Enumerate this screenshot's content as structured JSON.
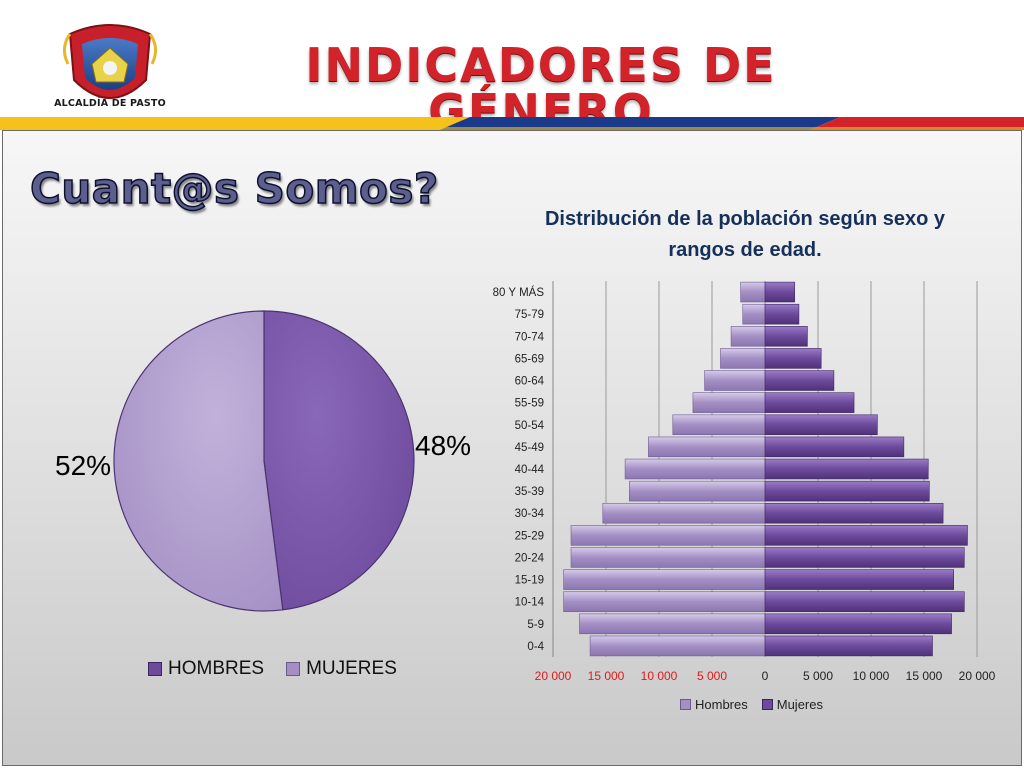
{
  "header": {
    "title": "INDICADORES DE GÉNERO",
    "logo_text": "ALCALDÍA DE PASTO"
  },
  "subtitle": "Cuant@s Somos?",
  "colors": {
    "title_red": "#d2232a",
    "stripe_yellow": "#f4c21a",
    "stripe_blue": "#1b3b8a",
    "stripe_red": "#d2232a",
    "hombres_dark": "#6d4a9c",
    "mujeres_light": "#a48fc4",
    "neg_tick_red": "#e21a1a"
  },
  "chart_data": [
    {
      "type": "pie",
      "categories": [
        "HOMBRES",
        "MUJERES"
      ],
      "values": [
        48,
        52
      ],
      "labels": [
        "48%",
        "52%"
      ],
      "legend": [
        "HOMBRES",
        "MUJERES"
      ],
      "legend_position": "bottom"
    },
    {
      "type": "bar",
      "orientation": "horizontal",
      "title": "Distribución de la población según sexo y rangos de edad.",
      "categories": [
        "0-4",
        "5-9",
        "10-14",
        "15-19",
        "20-24",
        "25-29",
        "30-34",
        "35-39",
        "40-44",
        "45-49",
        "50-54",
        "55-59",
        "60-64",
        "65-69",
        "70-74",
        "75-79",
        "80 Y MÁS"
      ],
      "series": [
        {
          "name": "Hombres",
          "values": [
            -16500,
            -17500,
            -19000,
            -19000,
            -18300,
            -18300,
            -15300,
            -12800,
            -13200,
            -11000,
            -8700,
            -6800,
            -5700,
            -4200,
            -3200,
            -2100,
            -2300
          ]
        },
        {
          "name": "Mujeres",
          "values": [
            15800,
            17600,
            18800,
            17800,
            18800,
            19100,
            16800,
            15500,
            15400,
            13100,
            10600,
            8400,
            6500,
            5300,
            4000,
            3200,
            2800
          ]
        }
      ],
      "xlim": [
        -20000,
        20000
      ],
      "ticks": [
        "20 000",
        "15 000",
        "10 000",
        "5 000",
        "0",
        "5 000",
        "10 000",
        "15 000",
        "20 000"
      ],
      "grid": true,
      "legend": [
        "Hombres",
        "Mujeres"
      ],
      "legend_position": "bottom"
    }
  ]
}
